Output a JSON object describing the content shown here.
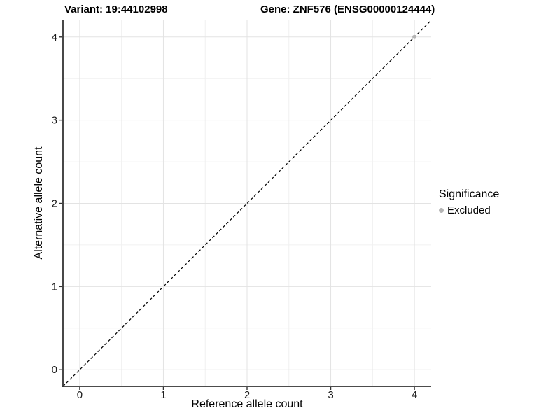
{
  "header": {
    "variant_title": "Variant: 19:44102998",
    "gene_title": "Gene: ZNF576 (ENSG00000124444)"
  },
  "chart_data": {
    "type": "scatter",
    "xlabel": "Reference allele count",
    "ylabel": "Alternative allele count",
    "xlim": [
      -0.2,
      4.2
    ],
    "ylim": [
      -0.2,
      4.2
    ],
    "x_ticks": [
      0,
      1,
      2,
      3,
      4
    ],
    "y_ticks": [
      0,
      1,
      2,
      3,
      4
    ],
    "minor_step": 0.5,
    "grid": "major+minor",
    "reference_line": {
      "slope": 1,
      "intercept": 0,
      "style": "dashed",
      "color": "#000000"
    },
    "series": [
      {
        "name": "Excluded",
        "color": "#b5b5b5",
        "points": [
          {
            "x": 4,
            "y": 4
          }
        ]
      }
    ],
    "legend": {
      "title": "Significance",
      "position": "right",
      "items": [
        {
          "label": "Excluded",
          "color": "#b5b5b5"
        }
      ]
    },
    "colors": {
      "major_grid": "#e3e3e3",
      "minor_grid": "#f0f0f0",
      "axis_line": "#333333",
      "tick_mark": "#333333",
      "tick_label": "#1a1a1a",
      "point_gray": "#b5b5b5"
    }
  }
}
